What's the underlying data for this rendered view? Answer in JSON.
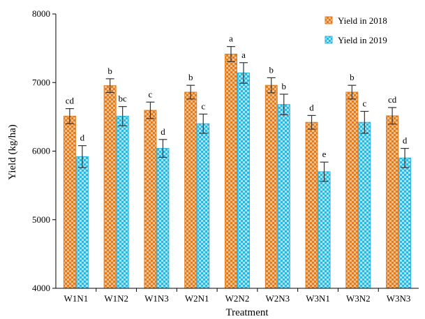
{
  "chart_data": {
    "type": "bar",
    "title": "",
    "xlabel": "Treatment",
    "ylabel": "Yield (kg/ha)",
    "ylim": [
      4000,
      8000
    ],
    "yticks": [
      "4000",
      "5000",
      "6000",
      "7000",
      "8000"
    ],
    "categories": [
      "W1N1",
      "W1N2",
      "W1N3",
      "W2N1",
      "W2N2",
      "W2N3",
      "W3N1",
      "W3N2",
      "W3N3"
    ],
    "legend_position": "top-right",
    "grid": false,
    "series": [
      {
        "name": "Yield in 2018",
        "color": "#e07b20",
        "pattern": "checker",
        "values": [
          6510,
          6955,
          6595,
          6860,
          7415,
          6960,
          6420,
          6860,
          6515
        ],
        "errors": [
          110,
          100,
          120,
          100,
          110,
          110,
          100,
          100,
          120
        ],
        "letters": [
          "cd",
          "b",
          "c",
          "b",
          "a",
          "b",
          "d",
          "b",
          "cd"
        ]
      },
      {
        "name": "Yield in 2019",
        "color": "#29b6e0",
        "pattern": "checker",
        "values": [
          5920,
          6510,
          6040,
          6400,
          7140,
          6680,
          5700,
          6420,
          5900
        ],
        "errors": [
          160,
          140,
          130,
          140,
          150,
          150,
          140,
          160,
          140
        ],
        "letters": [
          "d",
          "bc",
          "d",
          "c",
          "a",
          "b",
          "e",
          "c",
          "d"
        ]
      }
    ]
  }
}
